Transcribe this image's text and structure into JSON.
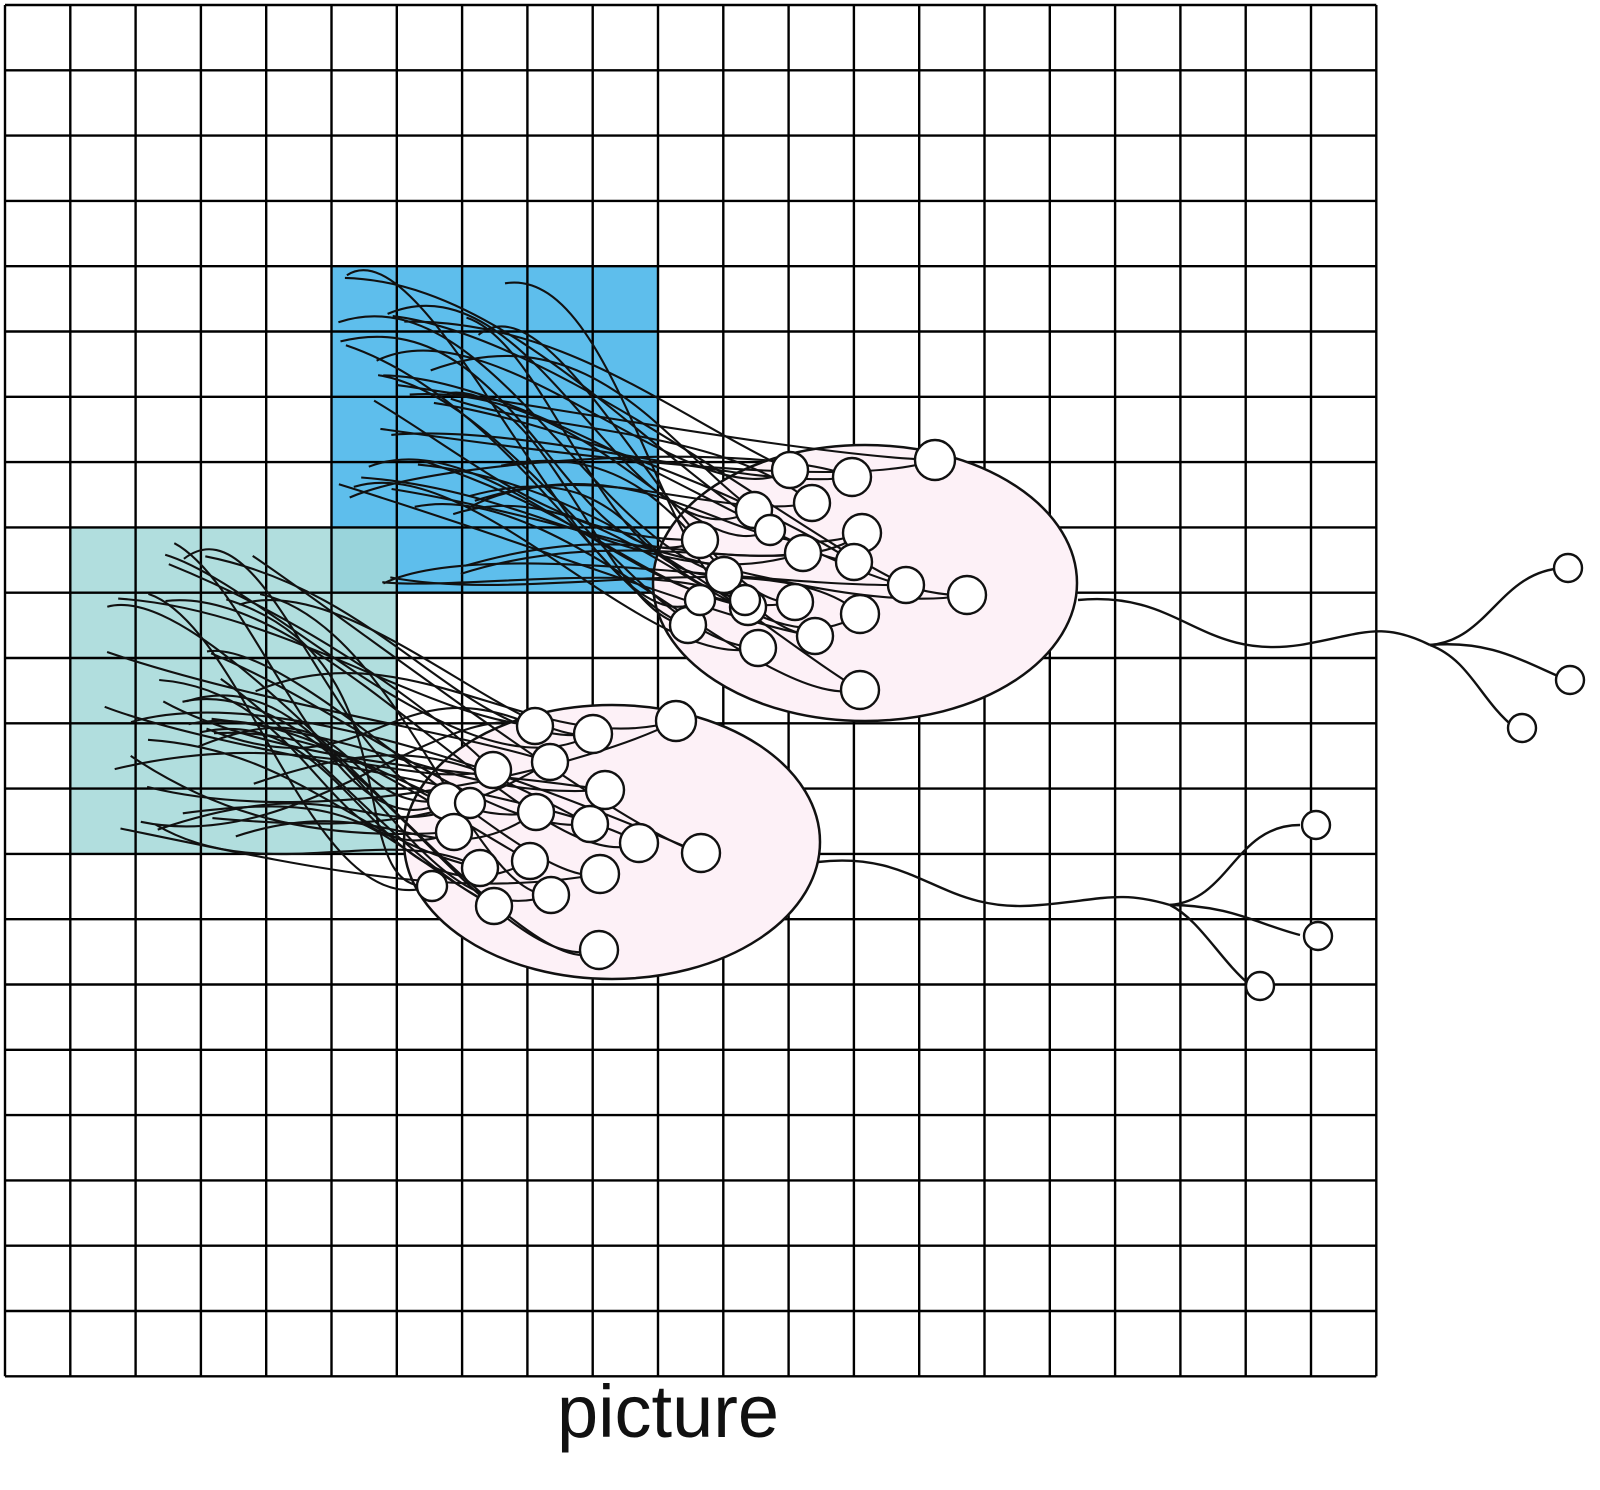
{
  "caption": "picture",
  "colors": {
    "grid_line": "#000000",
    "field_upper": "#4cb7ea",
    "field_lower": "#a3d8d8",
    "cell_body": "#fdf1f7",
    "dendrite": "#111111",
    "node_fill": "#ffffff"
  },
  "grid": {
    "columns": 21,
    "rows": 21
  },
  "receptive_fields": [
    {
      "name": "upper",
      "cols": 5,
      "rows": 5
    },
    {
      "name": "lower",
      "cols": 5,
      "rows": 5
    }
  ],
  "neurons": [
    {
      "name": "upper",
      "dendrite_nodes": 22,
      "axon_terminals": 3
    },
    {
      "name": "lower",
      "dendrite_nodes": 20,
      "axon_terminals": 3
    }
  ]
}
